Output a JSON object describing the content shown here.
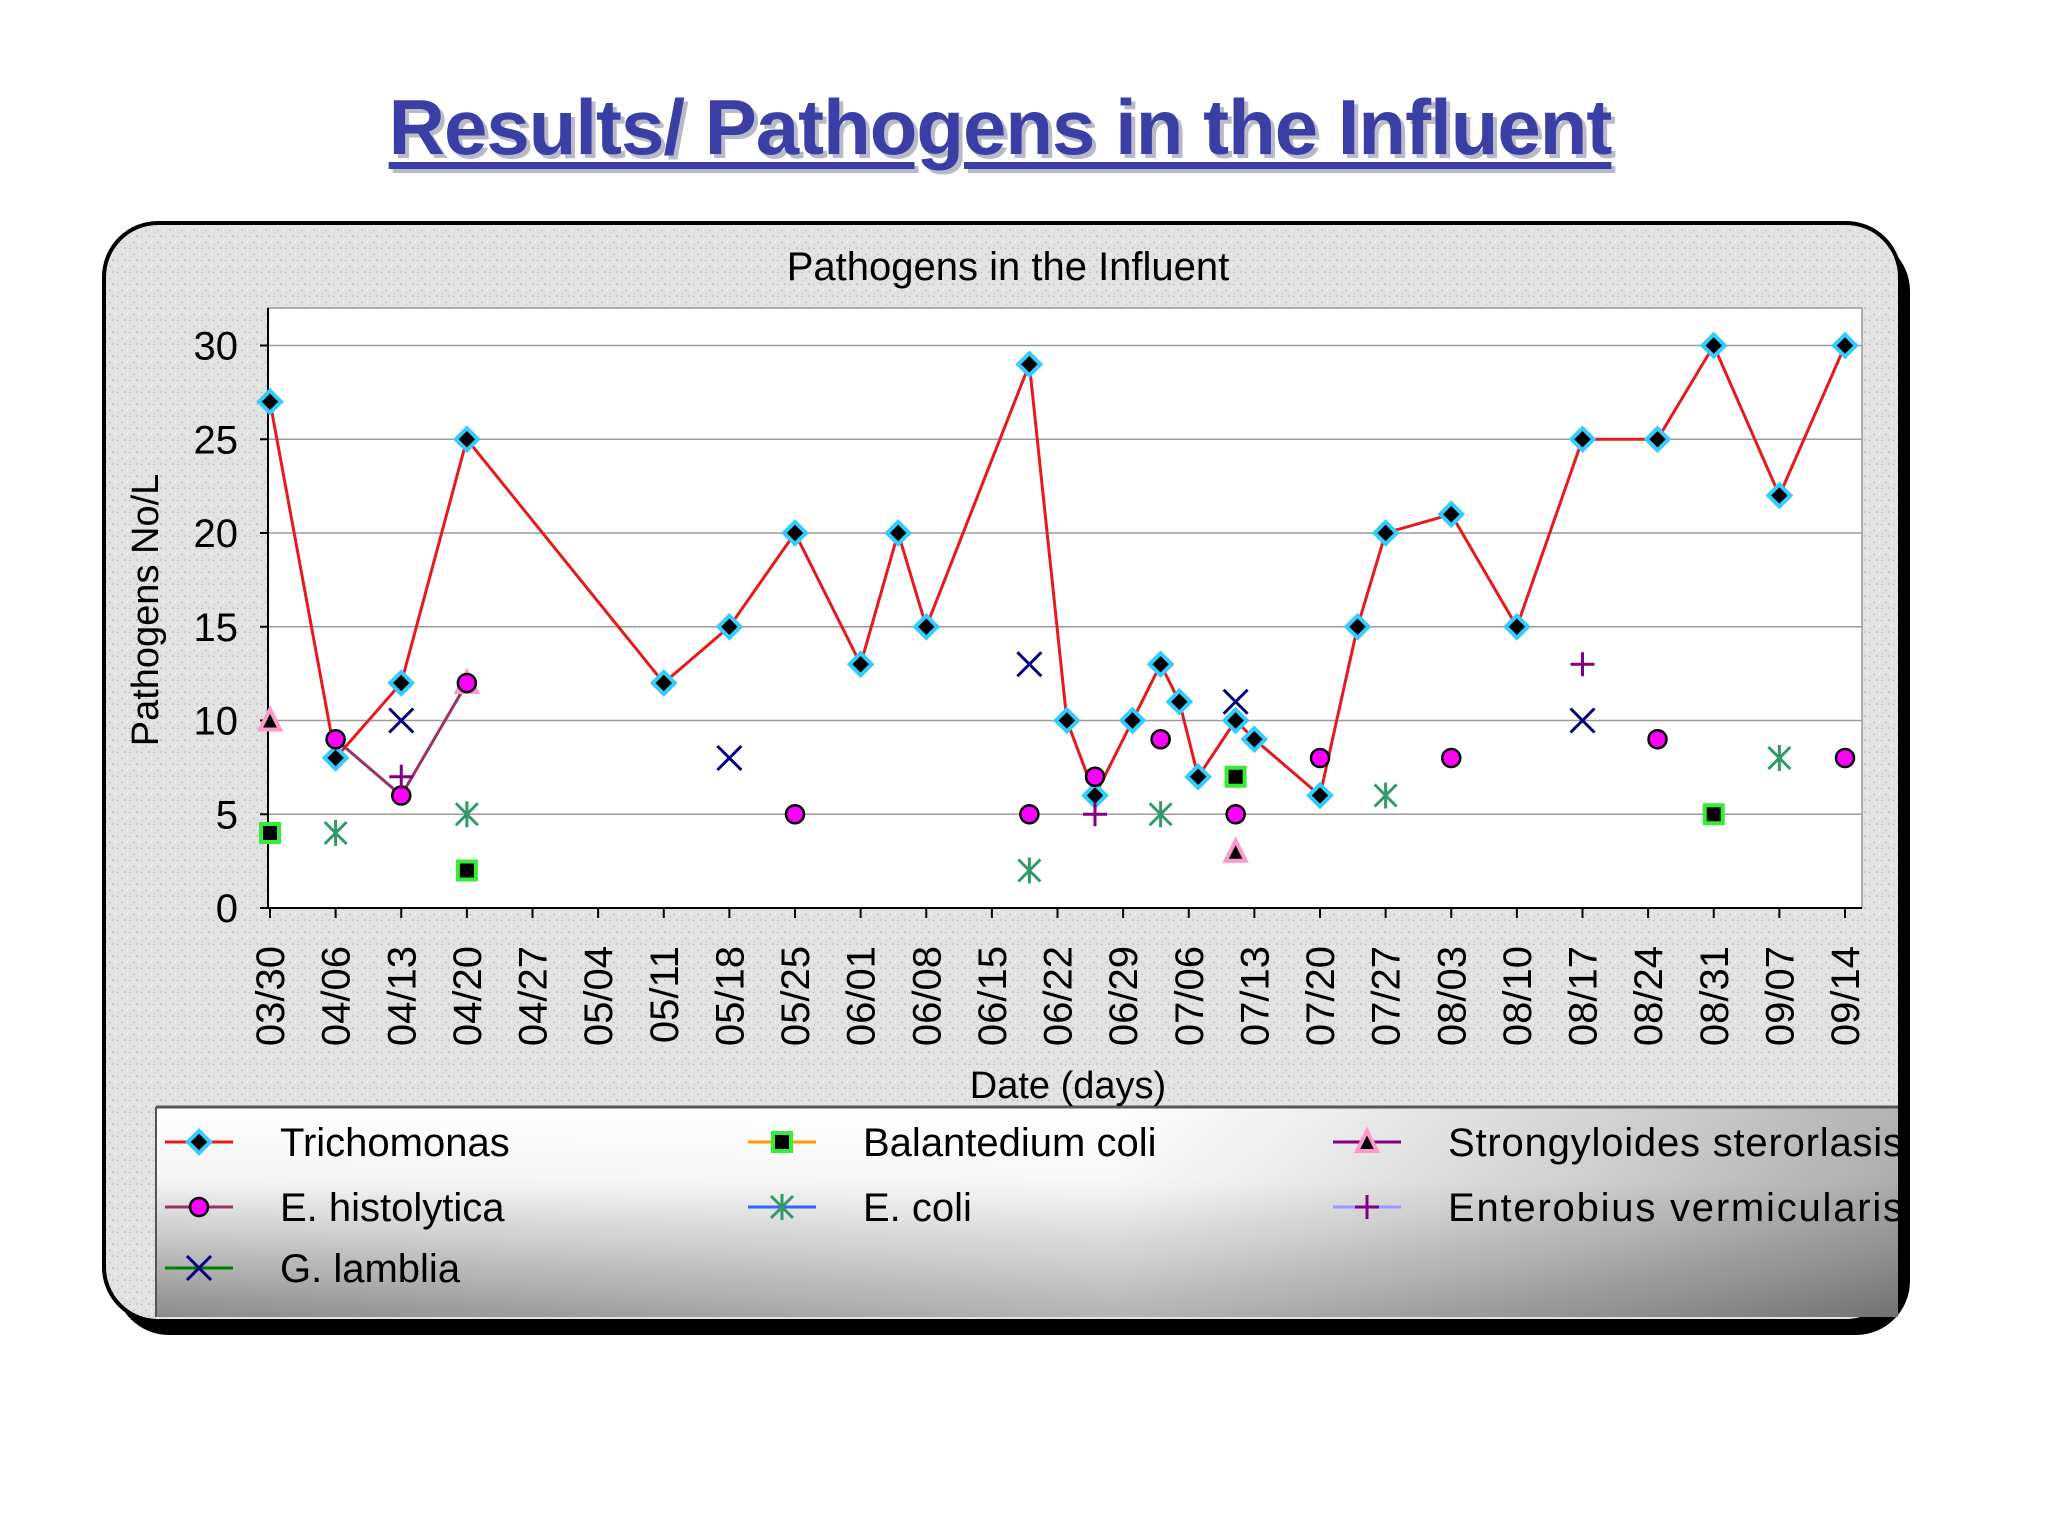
{
  "slide": {
    "title": "Results/ Pathogens in the Influent"
  },
  "colors": {
    "title": "#3b3fa5",
    "frame": "#000000",
    "grid": "#9a9a9a",
    "plot_bg": "#ffffff"
  },
  "chart_data": {
    "type": "scatter",
    "title": "Pathogens in the Influent",
    "xlabel": "Date (days)",
    "ylabel": "Pathogens No/L",
    "ylim": [
      0,
      32
    ],
    "yticks": [
      0,
      5,
      10,
      15,
      20,
      25,
      30
    ],
    "xlim": [
      "03/30",
      "09/16"
    ],
    "xticks": [
      "03/30",
      "04/06",
      "04/13",
      "04/20",
      "04/27",
      "05/04",
      "05/11",
      "05/18",
      "05/25",
      "06/01",
      "06/08",
      "06/15",
      "06/22",
      "06/29",
      "07/06",
      "07/13",
      "07/20",
      "07/27",
      "08/03",
      "08/10",
      "08/17",
      "08/24",
      "08/31",
      "09/07",
      "09/14"
    ],
    "grid": "horizontal",
    "legend_position": "bottom",
    "series": [
      {
        "name": "Trichomonas",
        "line": true,
        "line_color": "#e41a1c",
        "marker": "diamond",
        "marker_fill": "#000000",
        "marker_stroke": "#33ccff",
        "legend_line": "#e41a1c",
        "points": [
          [
            "03/30",
            27
          ],
          [
            "04/06",
            8
          ],
          [
            "04/13",
            12
          ],
          [
            "04/20",
            25
          ],
          [
            "05/11",
            12
          ],
          [
            "05/18",
            15
          ],
          [
            "05/25",
            20
          ],
          [
            "06/01",
            13
          ],
          [
            "06/05",
            20
          ],
          [
            "06/08",
            15
          ],
          [
            "06/19",
            29
          ],
          [
            "06/23",
            10
          ],
          [
            "06/26",
            6
          ],
          [
            "06/30",
            10
          ],
          [
            "07/03",
            13
          ],
          [
            "07/05",
            11
          ],
          [
            "07/07",
            7
          ],
          [
            "07/11",
            10
          ],
          [
            "07/13",
            9
          ],
          [
            "07/20",
            6
          ],
          [
            "07/24",
            15
          ],
          [
            "07/27",
            20
          ],
          [
            "08/03",
            21
          ],
          [
            "08/10",
            15
          ],
          [
            "08/17",
            25
          ],
          [
            "08/25",
            25
          ],
          [
            "08/31",
            30
          ],
          [
            "09/07",
            22
          ],
          [
            "09/14",
            30
          ]
        ]
      },
      {
        "name": "Balantedium coli",
        "line": false,
        "marker": "square",
        "marker_fill": "#000000",
        "marker_stroke": "#33ee33",
        "legend_line": "#ff9900",
        "points": [
          [
            "03/30",
            4
          ],
          [
            "04/20",
            2
          ],
          [
            "07/11",
            7
          ],
          [
            "08/31",
            5
          ]
        ]
      },
      {
        "name": "Strongyloides sterorlasis",
        "line": false,
        "marker": "triangle",
        "marker_fill": "#000000",
        "marker_stroke": "#ff99cc",
        "legend_line": "#800080",
        "points": [
          [
            "03/30",
            10
          ],
          [
            "04/20",
            12
          ],
          [
            "07/11",
            3
          ]
        ]
      },
      {
        "name": "E. histolytica",
        "line": true,
        "line_color": "#993366",
        "line_until": "04/20",
        "marker": "circle",
        "marker_fill": "#ff00ff",
        "marker_stroke": "#000000",
        "legend_line": "#993366",
        "points": [
          [
            "04/06",
            9
          ],
          [
            "04/13",
            6
          ],
          [
            "04/20",
            12
          ],
          [
            "05/25",
            5
          ],
          [
            "06/19",
            5
          ],
          [
            "06/26",
            7
          ],
          [
            "07/03",
            9
          ],
          [
            "07/11",
            5
          ],
          [
            "07/20",
            8
          ],
          [
            "08/03",
            8
          ],
          [
            "08/25",
            9
          ],
          [
            "09/14",
            8
          ]
        ]
      },
      {
        "name": "E. coli",
        "line": false,
        "marker": "asterisk",
        "marker_stroke": "#339966",
        "legend_line": "#3366ff",
        "points": [
          [
            "04/06",
            4
          ],
          [
            "04/20",
            5
          ],
          [
            "06/19",
            2
          ],
          [
            "07/03",
            5
          ],
          [
            "07/27",
            6
          ],
          [
            "09/07",
            8
          ]
        ]
      },
      {
        "name": "Enterobius vermicularis",
        "line": false,
        "marker": "plus",
        "marker_stroke": "#800080",
        "legend_line": "#9999ff",
        "points": [
          [
            "04/13",
            7
          ],
          [
            "06/26",
            5
          ],
          [
            "08/17",
            13
          ]
        ]
      },
      {
        "name": "G. lamblia",
        "line": false,
        "marker": "x",
        "marker_stroke": "#000080",
        "legend_line": "#008000",
        "points": [
          [
            "04/13",
            10
          ],
          [
            "05/18",
            8
          ],
          [
            "06/19",
            13
          ],
          [
            "07/11",
            11
          ],
          [
            "08/17",
            10
          ]
        ]
      }
    ]
  }
}
